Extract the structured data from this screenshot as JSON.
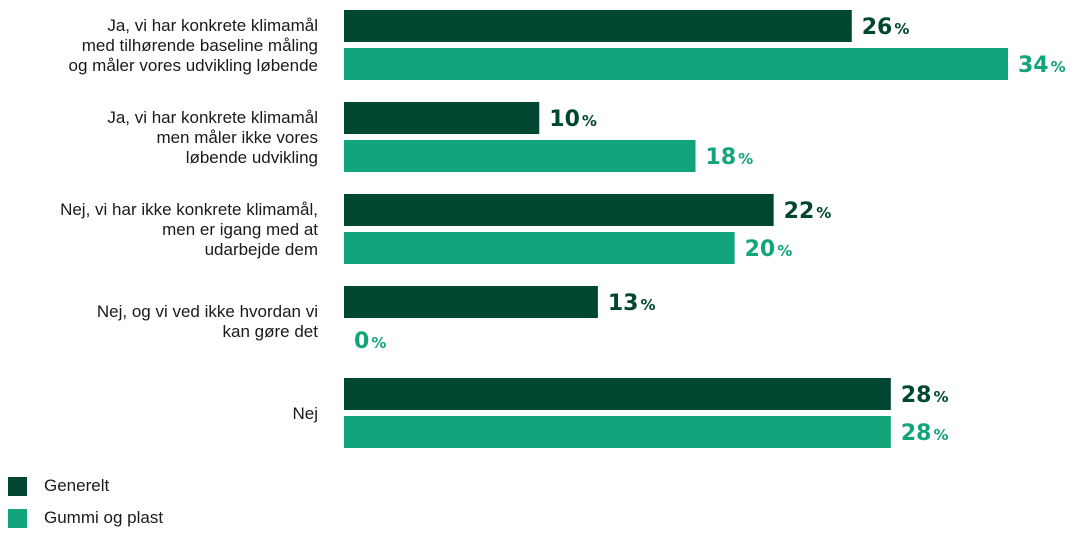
{
  "chart_data": {
    "type": "bar",
    "orientation": "horizontal",
    "value_suffix": "%",
    "categories": [
      [
        "Ja, vi har konkrete klimamål",
        "med tilhørende baseline måling",
        "og måler vores udvikling løbende"
      ],
      [
        "Ja, vi har konkrete klimamål",
        "men måler ikke vores",
        "løbende udvikling"
      ],
      [
        "Nej, vi har ikke konkrete klimamål,",
        "men er igang med at",
        "udarbejde dem"
      ],
      [
        "Nej, og vi ved ikke hvordan vi",
        "kan gøre det"
      ],
      [
        "Nej"
      ]
    ],
    "series": [
      {
        "name": "Generelt",
        "color": "#004731",
        "values": [
          26,
          10,
          22,
          13,
          28
        ]
      },
      {
        "name": "Gummi og plast",
        "color": "#12a47b",
        "values": [
          34,
          18,
          20,
          0,
          28
        ]
      }
    ],
    "xlim": [
      0,
      34
    ],
    "grid": false,
    "legend_position": "bottom-left"
  }
}
